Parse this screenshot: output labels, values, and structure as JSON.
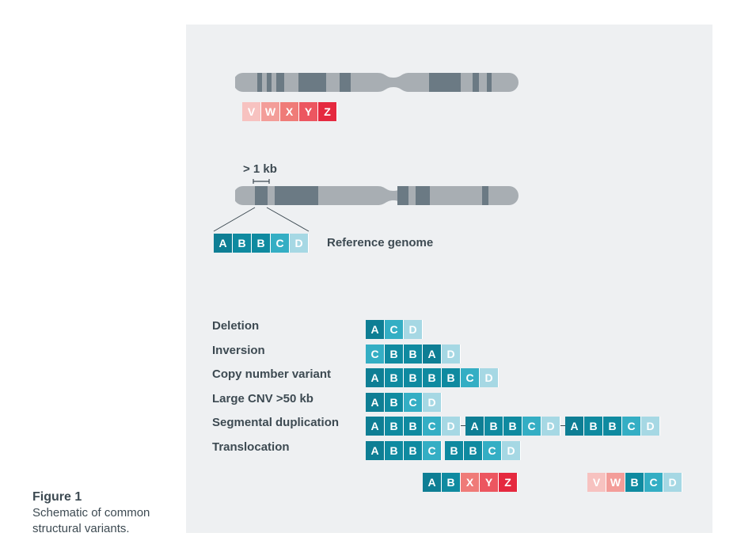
{
  "colors": {
    "A": "#0e7e94",
    "B": "#0f8aa0",
    "C": "#34aec4",
    "D": "#a6d8e4",
    "V": "#f7c2c0",
    "W": "#f39d99",
    "X": "#ef7b78",
    "Y": "#ec5660",
    "Z": "#e5293f",
    "chromosome": "#a8aeb3",
    "band": "#6b7a84",
    "text": "#3d4a52"
  },
  "top_chromosome_sequence": [
    "V",
    "W",
    "X",
    "Y",
    "Z"
  ],
  "reference": {
    "span_label": "> 1 kb",
    "sequence": [
      "A",
      "B",
      "B",
      "C",
      "D"
    ],
    "label": "Reference genome"
  },
  "variants": [
    {
      "label": "Deletion",
      "segments": [
        [
          "A",
          "C",
          "D"
        ]
      ]
    },
    {
      "label": "Inversion",
      "segments": [
        [
          "C",
          "B",
          "B",
          "A",
          "D"
        ]
      ]
    },
    {
      "label": "Copy number variant",
      "segments": [
        [
          "A",
          "B",
          "B",
          "B",
          "B",
          "C",
          "D"
        ]
      ]
    },
    {
      "label": "Large CNV >50 kb",
      "segments": [
        [
          "A",
          "B",
          "C",
          "D"
        ]
      ]
    },
    {
      "label": "Segmental duplication",
      "segments": [
        [
          "A",
          "B",
          "B",
          "C",
          "D"
        ],
        [
          "A",
          "B",
          "B",
          "C",
          "D"
        ],
        [
          "A",
          "B",
          "B",
          "C",
          "D"
        ]
      ],
      "joined": true
    },
    {
      "label": "Translocation",
      "segments": [
        [
          "A",
          "B",
          "B",
          "C"
        ],
        [
          "B",
          "B",
          "C",
          "D"
        ]
      ]
    }
  ],
  "translocation_products": [
    [
      "A",
      "B",
      "X",
      "Y",
      "Z"
    ],
    [
      "V",
      "W",
      "B",
      "C",
      "D"
    ]
  ],
  "figure": {
    "title": "Figure 1",
    "caption_line1": "Schematic of common",
    "caption_line2": "structural variants."
  }
}
